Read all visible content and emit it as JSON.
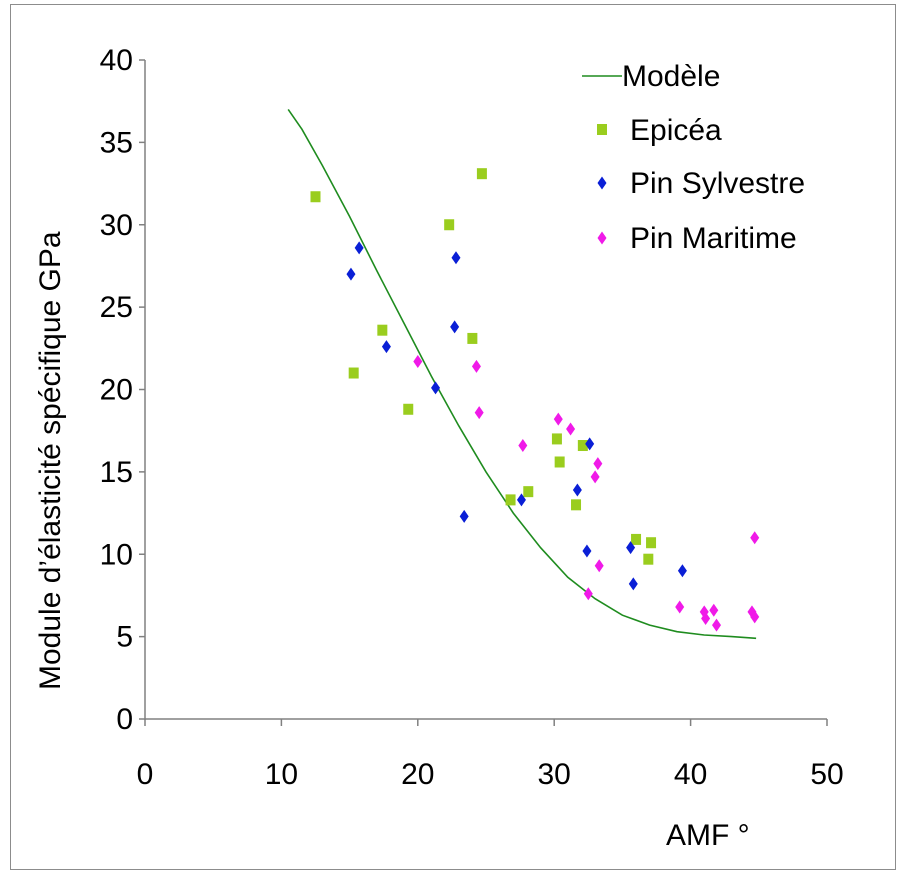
{
  "chart_data": {
    "type": "scatter",
    "title": "",
    "xlabel": "AMF °",
    "ylabel": "Module d’élasticité spécifique GPa",
    "xlim": [
      0,
      50
    ],
    "ylim": [
      0,
      40
    ],
    "xticks": [
      0,
      10,
      20,
      30,
      40,
      50
    ],
    "yticks": [
      0,
      5,
      10,
      15,
      20,
      25,
      30,
      35,
      40
    ],
    "grid": false,
    "legend_position": "top-right",
    "series": [
      {
        "name": "Modèle",
        "kind": "line",
        "color": "#1f8c1f",
        "points": [
          [
            10.5,
            37.0
          ],
          [
            11.5,
            35.8
          ],
          [
            13,
            33.6
          ],
          [
            15,
            30.5
          ],
          [
            17,
            27.2
          ],
          [
            19,
            24.0
          ],
          [
            21,
            20.8
          ],
          [
            23,
            17.8
          ],
          [
            25,
            15.0
          ],
          [
            27,
            12.5
          ],
          [
            29,
            10.4
          ],
          [
            31,
            8.6
          ],
          [
            33,
            7.3
          ],
          [
            35,
            6.3
          ],
          [
            37,
            5.7
          ],
          [
            39,
            5.3
          ],
          [
            41,
            5.1
          ],
          [
            43,
            5.0
          ],
          [
            44.8,
            4.9
          ]
        ]
      },
      {
        "name": "Epicéa",
        "kind": "scatter",
        "marker": "square",
        "color": "#9acd1e",
        "points": [
          [
            12.5,
            31.7
          ],
          [
            15.3,
            21.0
          ],
          [
            17.4,
            23.6
          ],
          [
            19.3,
            18.8
          ],
          [
            22.3,
            30.0
          ],
          [
            24.0,
            23.1
          ],
          [
            24.7,
            33.1
          ],
          [
            26.8,
            13.3
          ],
          [
            28.1,
            13.8
          ],
          [
            30.2,
            17.0
          ],
          [
            30.4,
            15.6
          ],
          [
            31.6,
            13.0
          ],
          [
            32.1,
            16.6
          ],
          [
            36.0,
            10.9
          ],
          [
            36.9,
            9.7
          ],
          [
            37.1,
            10.7
          ]
        ]
      },
      {
        "name": "Pin Sylvestre",
        "kind": "scatter",
        "marker": "diamond",
        "color": "#0a1fd6",
        "points": [
          [
            15.1,
            27.0
          ],
          [
            15.7,
            28.6
          ],
          [
            17.7,
            22.6
          ],
          [
            21.3,
            20.1
          ],
          [
            22.7,
            23.8
          ],
          [
            22.8,
            28.0
          ],
          [
            23.4,
            12.3
          ],
          [
            27.6,
            13.3
          ],
          [
            31.7,
            13.9
          ],
          [
            32.4,
            10.2
          ],
          [
            32.6,
            16.7
          ],
          [
            35.6,
            10.4
          ],
          [
            35.8,
            8.2
          ],
          [
            39.4,
            9.0
          ]
        ]
      },
      {
        "name": " Pin Maritime",
        "kind": "scatter",
        "marker": "diamond",
        "color": "#f01ae8",
        "points": [
          [
            20.0,
            21.7
          ],
          [
            24.3,
            21.4
          ],
          [
            24.5,
            18.6
          ],
          [
            27.7,
            16.6
          ],
          [
            30.3,
            18.2
          ],
          [
            31.2,
            17.6
          ],
          [
            32.5,
            7.6
          ],
          [
            33.0,
            14.7
          ],
          [
            33.2,
            15.5
          ],
          [
            33.3,
            9.3
          ],
          [
            39.2,
            6.8
          ],
          [
            41.0,
            6.5
          ],
          [
            41.1,
            6.1
          ],
          [
            41.7,
            6.6
          ],
          [
            41.9,
            5.7
          ],
          [
            44.5,
            6.5
          ],
          [
            44.7,
            6.2
          ],
          [
            44.7,
            11.0
          ]
        ]
      }
    ]
  }
}
